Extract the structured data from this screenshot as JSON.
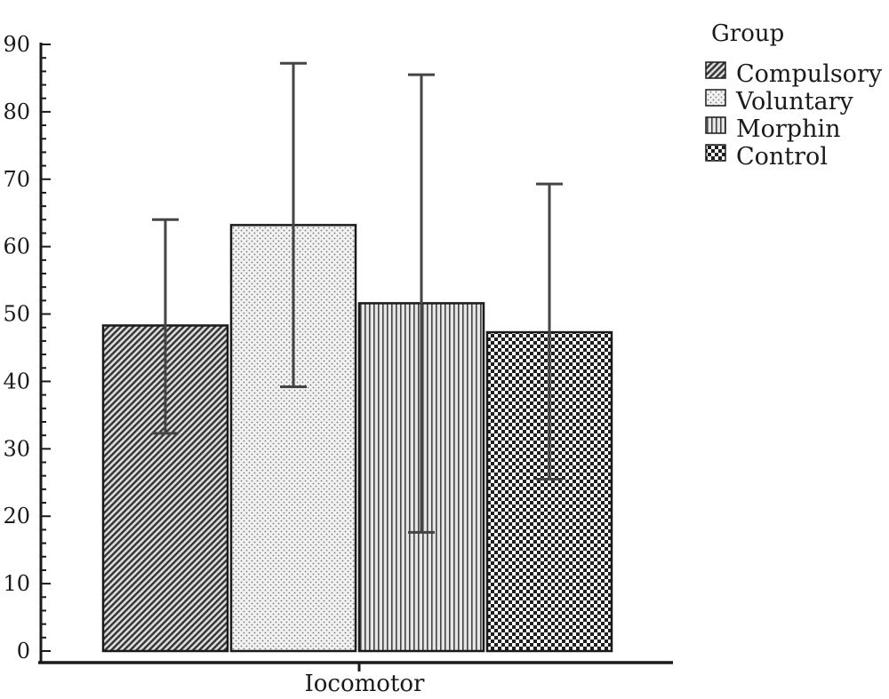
{
  "chart_data": {
    "type": "bar",
    "title": "",
    "xlabel": "",
    "ylabel": "",
    "categories": [
      "Iocomotor"
    ],
    "ylim": [
      0,
      90
    ],
    "yticks": [
      0,
      10,
      20,
      30,
      40,
      50,
      60,
      70,
      80,
      90
    ],
    "grid": false,
    "legend": {
      "title": "Group",
      "placement": "top-right"
    },
    "series": [
      {
        "name": "Compulsory",
        "values": [
          48.3
        ],
        "error_low": [
          32.3
        ],
        "error_high": [
          64.0
        ],
        "pattern": "diagonal-hatch"
      },
      {
        "name": "Voluntary",
        "values": [
          63.2
        ],
        "error_low": [
          39.2
        ],
        "error_high": [
          87.2
        ],
        "pattern": "dots"
      },
      {
        "name": "Morphin",
        "values": [
          51.6
        ],
        "error_low": [
          17.6
        ],
        "error_high": [
          85.5
        ],
        "pattern": "vertical-lines"
      },
      {
        "name": "Control",
        "values": [
          47.3
        ],
        "error_low": [
          25.5
        ],
        "error_high": [
          69.3
        ],
        "pattern": "checker"
      }
    ]
  }
}
